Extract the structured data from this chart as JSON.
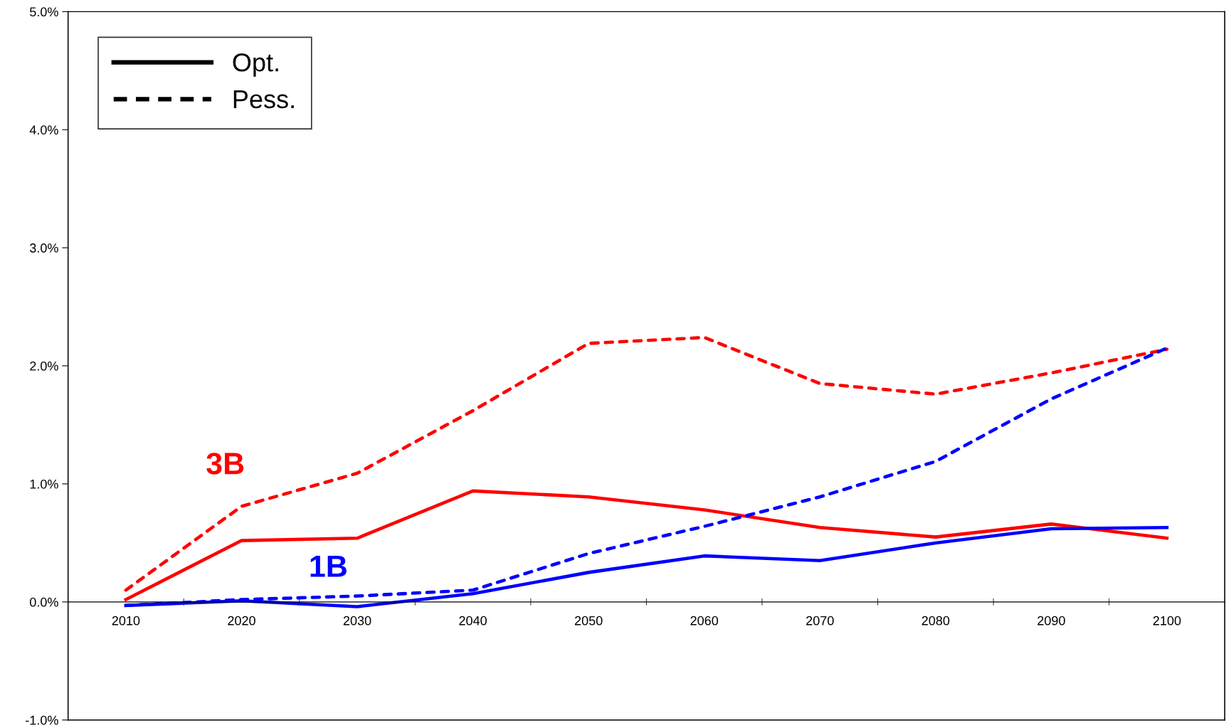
{
  "chart_data": {
    "type": "line",
    "categories": [
      "2010",
      "2020",
      "2030",
      "2040",
      "2050",
      "2060",
      "2070",
      "2080",
      "2090",
      "2100"
    ],
    "series": [
      {
        "name": "3B",
        "color": "#ff0000",
        "line_style": "solid",
        "values": [
          0.02,
          0.52,
          0.54,
          0.94,
          0.89,
          0.78,
          0.63,
          0.55,
          0.66,
          0.54
        ]
      },
      {
        "color": "#ff0000",
        "line_style": "dashed",
        "values": [
          0.1,
          0.81,
          1.09,
          1.62,
          2.19,
          2.24,
          1.85,
          1.76,
          1.94,
          2.14
        ]
      },
      {
        "name": "1B",
        "color": "#0000ff",
        "line_style": "solid",
        "values": [
          -0.03,
          0.01,
          -0.04,
          0.07,
          0.25,
          0.39,
          0.35,
          0.5,
          0.62,
          0.63
        ]
      },
      {
        "color": "#0000ff",
        "line_style": "dashed",
        "values": [
          -0.03,
          0.02,
          0.05,
          0.1,
          0.41,
          0.64,
          0.89,
          1.19,
          1.72,
          2.15
        ]
      }
    ],
    "annotations": [
      "Opt.",
      "Pess."
    ],
    "ylim": [
      -1.0,
      5.0
    ],
    "yticks": [
      {
        "value": -1.0,
        "label": "-1.0%"
      },
      {
        "value": 0.0,
        "label": "0.0%"
      },
      {
        "value": 1.0,
        "label": "1.0%"
      },
      {
        "value": 2.0,
        "label": "2.0%"
      },
      {
        "value": 3.0,
        "label": "3.0%"
      },
      {
        "value": 4.0,
        "label": "4.0%"
      },
      {
        "value": 5.0,
        "label": "5.0%"
      }
    ],
    "grid": false,
    "marker": "none"
  }
}
